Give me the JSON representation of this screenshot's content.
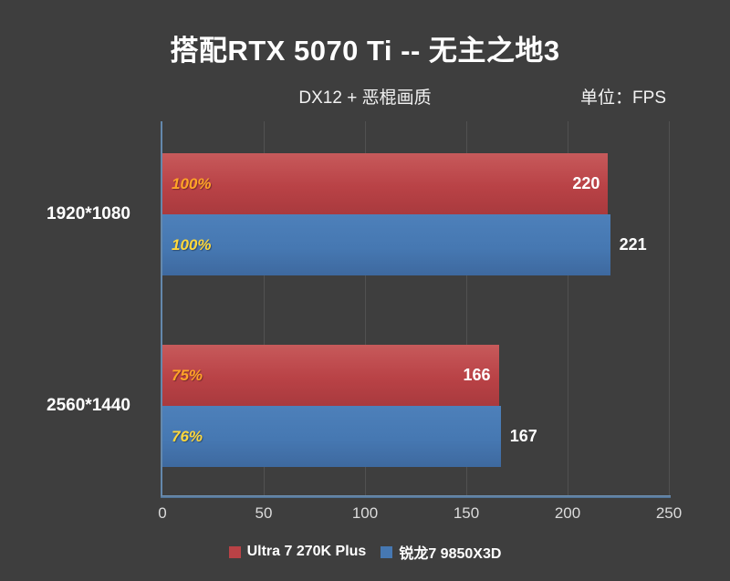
{
  "chart_data": {
    "type": "bar",
    "orientation": "horizontal",
    "title": "搭配RTX 5070 Ti -- 无主之地3",
    "subtitle": "DX12 + 恶棍画质",
    "unit_label": "单位：FPS",
    "categories": [
      "1920*1080",
      "2560*1440"
    ],
    "series": [
      {
        "name": "Ultra 7 270K Plus",
        "values": [
          220,
          166
        ],
        "pct_labels": [
          "100%",
          "75%"
        ],
        "value_label_placement": "inside",
        "color": "#b94246",
        "color_light": "#c75a5b",
        "color_dark": "#a93a3e",
        "pct_color": "#ffa427"
      },
      {
        "name": "锐龙7 9850X3D",
        "values": [
          221,
          167
        ],
        "pct_labels": [
          "100%",
          "76%"
        ],
        "value_label_placement": "outside",
        "color": "#4678b2",
        "color_light": "#4d80ba",
        "color_dark": "#3e699f",
        "pct_color": "#ffd83b"
      }
    ],
    "xlim": [
      0,
      250
    ],
    "xticks": [
      0,
      50,
      100,
      150,
      200,
      250
    ],
    "grid": true,
    "legend_position": "bottom",
    "colors": {
      "background": "#3e3e3e",
      "gridline": "#515151",
      "axis_line": "#6488ac",
      "text": "#ffffff",
      "tick_text": "#dcdcdc"
    }
  }
}
